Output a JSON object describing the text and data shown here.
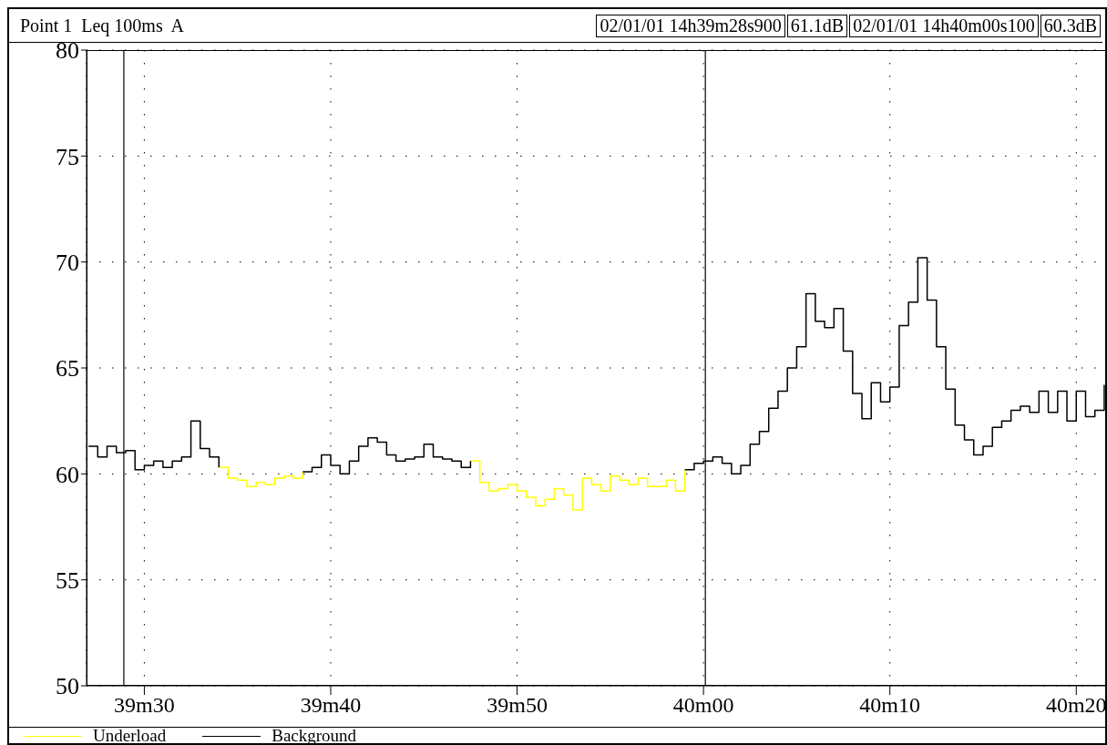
{
  "chart_data": {
    "type": "step",
    "title": "Point 1  Leq 100ms  A",
    "x": [
      "--01-02T14:39:27.0",
      "--01-02T14:39:27.5",
      "--01-02T14:39:28.0",
      "--01-02T14:39:28.5",
      "--01-02T14:39:29.0",
      "--01-02T14:39:29.5",
      "--01-02T14:39:30.0",
      "--01-02T14:39:30.5",
      "--01-02T14:39:31.0",
      "--01-02T14:39:31.5",
      "--01-02T14:39:32.0",
      "--01-02T14:39:32.5",
      "--01-02T14:39:33.0",
      "--01-02T14:39:33.5",
      "--01-02T14:39:34.0",
      "--01-02T14:39:34.5",
      "--01-02T14:39:35.0",
      "--01-02T14:39:35.5",
      "--01-02T14:39:36.0",
      "--01-02T14:39:36.5",
      "--01-02T14:39:37.0",
      "--01-02T14:39:37.5",
      "--01-02T14:39:38.0",
      "--01-02T14:39:38.5",
      "--01-02T14:39:39.0",
      "--01-02T14:39:39.5",
      "--01-02T14:39:40.0",
      "--01-02T14:39:40.5",
      "--01-02T14:39:41.0",
      "--01-02T14:39:41.5",
      "--01-02T14:39:42.0",
      "--01-02T14:39:42.5",
      "--01-02T14:39:43.0",
      "--01-02T14:39:43.5",
      "--01-02T14:39:44.0",
      "--01-02T14:39:44.5",
      "--01-02T14:39:45.0",
      "--01-02T14:39:45.5",
      "--01-02T14:39:46.0",
      "--01-02T14:39:46.5",
      "--01-02T14:39:47.0",
      "--01-02T14:39:47.5",
      "--01-02T14:39:48.0",
      "--01-02T14:39:48.5",
      "--01-02T14:39:49.0",
      "--01-02T14:39:49.5",
      "--01-02T14:39:50.0",
      "--01-02T14:39:50.5",
      "--01-02T14:39:51.0",
      "--01-02T14:39:51.5",
      "--01-02T14:39:52.0",
      "--01-02T14:39:52.5",
      "--01-02T14:39:53.0",
      "--01-02T14:39:53.5",
      "--01-02T14:39:54.0",
      "--01-02T14:39:54.5",
      "--01-02T14:39:55.0",
      "--01-02T14:39:55.5",
      "--01-02T14:39:56.0",
      "--01-02T14:39:56.5",
      "--01-02T14:39:57.0",
      "--01-02T14:39:57.5",
      "--01-02T14:39:58.0",
      "--01-02T14:39:58.5",
      "--01-02T14:39:59.0",
      "--01-02T14:39:59.5",
      "--01-02T14:40:00.0",
      "--01-02T14:40:00.5",
      "--01-02T14:40:01.0",
      "--01-02T14:40:01.5",
      "--01-02T14:40:02.0",
      "--01-02T14:40:02.5",
      "--01-02T14:40:03.0",
      "--01-02T14:40:03.5",
      "--01-02T14:40:04.0",
      "--01-02T14:40:04.5",
      "--01-02T14:40:05.0",
      "--01-02T14:40:05.5",
      "--01-02T14:40:06.0",
      "--01-02T14:40:06.5",
      "--01-02T14:40:07.0",
      "--01-02T14:40:07.5",
      "--01-02T14:40:08.0",
      "--01-02T14:40:08.5",
      "--01-02T14:40:09.0",
      "--01-02T14:40:09.5",
      "--01-02T14:40:10.0",
      "--01-02T14:40:10.5",
      "--01-02T14:40:11.0",
      "--01-02T14:40:11.5",
      "--01-02T14:40:12.0",
      "--01-02T14:40:12.5",
      "--01-02T14:40:13.0",
      "--01-02T14:40:13.5",
      "--01-02T14:40:14.0",
      "--01-02T14:40:14.5",
      "--01-02T14:40:15.0",
      "--01-02T14:40:15.5",
      "--01-02T14:40:16.0",
      "--01-02T14:40:16.5",
      "--01-02T14:40:17.0",
      "--01-02T14:40:17.5",
      "--01-02T14:40:18.0",
      "--01-02T14:40:18.5",
      "--01-02T14:40:19.0",
      "--01-02T14:40:19.5",
      "--01-02T14:40:20.0",
      "--01-02T14:40:20.5",
      "--01-02T14:40:21.0",
      "--01-02T14:40:21.5"
    ],
    "series": [
      {
        "name": "Underload",
        "color": "#ffff00",
        "values": [
          null,
          null,
          null,
          null,
          null,
          null,
          null,
          null,
          null,
          null,
          null,
          null,
          null,
          null,
          60.3,
          59.8,
          59.7,
          59.4,
          59.6,
          59.5,
          59.8,
          59.9,
          59.8,
          60.1,
          null,
          null,
          null,
          null,
          null,
          null,
          null,
          null,
          null,
          null,
          null,
          null,
          null,
          null,
          null,
          null,
          null,
          60.6,
          59.6,
          59.2,
          59.3,
          59.5,
          59.2,
          58.9,
          58.5,
          58.8,
          59.3,
          59.0,
          58.3,
          59.8,
          59.5,
          59.2,
          59.9,
          59.7,
          59.5,
          59.8,
          59.4,
          59.4,
          59.7,
          59.2,
          60.2,
          null,
          null,
          null,
          null,
          null,
          null,
          null,
          null,
          null,
          null,
          null,
          null,
          null,
          null,
          null,
          null,
          null,
          null,
          null,
          null,
          null,
          null,
          null,
          null,
          null,
          null,
          null,
          null,
          null,
          null,
          null,
          null,
          null,
          null,
          null,
          null,
          null,
          null,
          null,
          null,
          null,
          null,
          null,
          null,
          null
        ]
      },
      {
        "name": "Background",
        "color": "#000000",
        "values": [
          61.3,
          60.8,
          61.3,
          61.0,
          61.1,
          60.2,
          60.4,
          60.6,
          60.3,
          60.6,
          60.8,
          62.5,
          61.2,
          60.8,
          60.3,
          null,
          null,
          null,
          null,
          null,
          null,
          null,
          null,
          60.1,
          60.3,
          60.9,
          60.4,
          60.0,
          60.6,
          61.3,
          61.7,
          61.5,
          60.9,
          60.6,
          60.7,
          60.8,
          61.4,
          60.8,
          60.7,
          60.6,
          60.3,
          60.6,
          null,
          null,
          null,
          null,
          null,
          null,
          null,
          null,
          null,
          null,
          null,
          null,
          null,
          null,
          null,
          null,
          null,
          null,
          null,
          null,
          null,
          null,
          60.2,
          60.5,
          60.6,
          60.8,
          60.5,
          60.0,
          60.4,
          61.4,
          62.0,
          63.1,
          63.9,
          65.0,
          66.0,
          68.5,
          67.2,
          66.9,
          67.8,
          65.8,
          63.8,
          62.6,
          64.3,
          63.4,
          64.1,
          67.0,
          68.1,
          70.2,
          68.2,
          66.0,
          64.0,
          62.3,
          61.6,
          60.9,
          61.3,
          62.2,
          62.5,
          63.0,
          63.2,
          62.9,
          63.9,
          62.9,
          63.9,
          62.5,
          63.9,
          62.7,
          63.0,
          64.2
        ]
      }
    ],
    "xlim": [
      "--01-02T14:39:26.9",
      "--01-02T14:40:21.6"
    ],
    "xticks": [
      {
        "value": "--01-02T14:39:30",
        "label": "39m30"
      },
      {
        "value": "--01-02T14:39:40",
        "label": "39m40"
      },
      {
        "value": "--01-02T14:39:50",
        "label": "39m50"
      },
      {
        "value": "--01-02T14:40:00",
        "label": "40m00"
      },
      {
        "value": "--01-02T14:40:10",
        "label": "40m10"
      },
      {
        "value": "--01-02T14:40:20",
        "label": "40m20"
      }
    ],
    "ylim": [
      50,
      80
    ],
    "yticks": [
      50,
      55,
      60,
      65,
      70,
      75,
      80
    ],
    "ref_lines": [
      {
        "axis": "x",
        "value": "--01-02T14:39:28.9",
        "color": "#000000"
      },
      {
        "axis": "x",
        "value": "--01-02T14:40:00.1",
        "color": "#000000"
      }
    ],
    "annotations": [
      "02/01/01 14h39m28s900",
      "61.1dB",
      "02/01/01 14h40m00s100",
      "60.3dB"
    ],
    "grid": true,
    "legend": "bottom"
  }
}
